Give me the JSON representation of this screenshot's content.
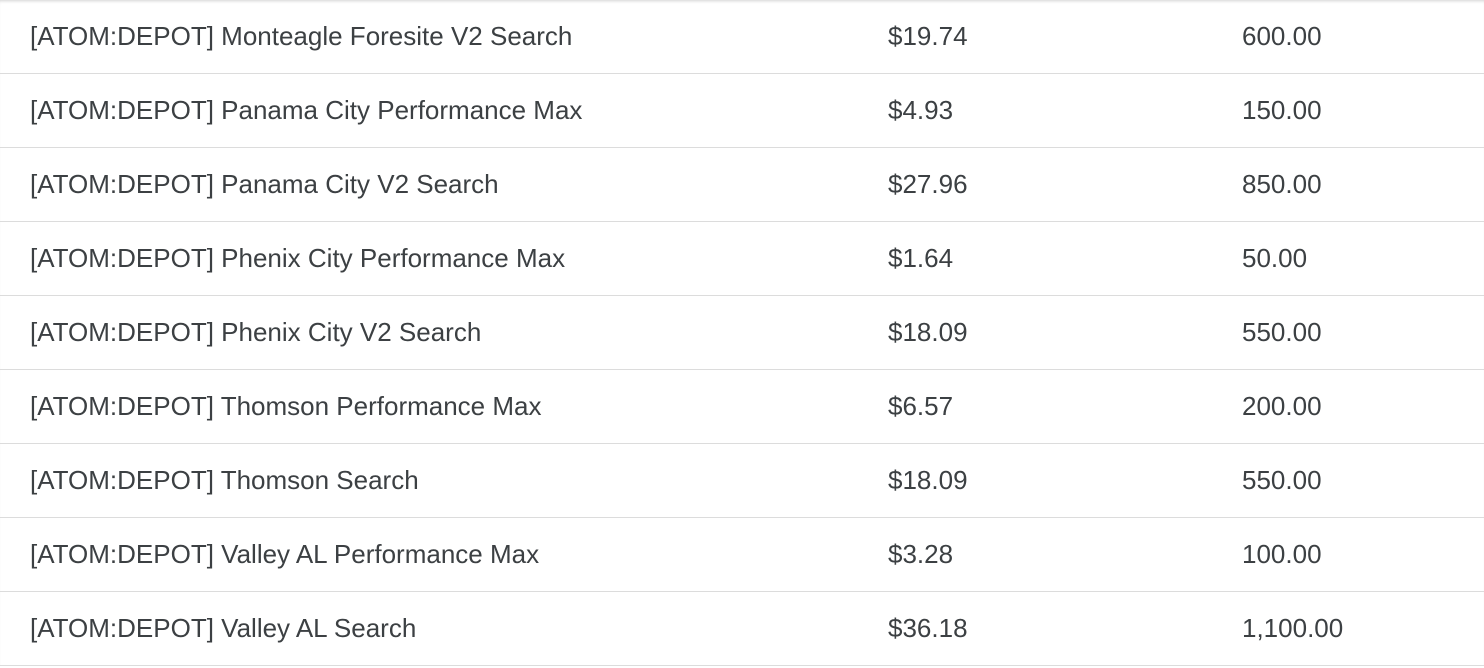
{
  "table": {
    "rows": [
      [
        "[ATOM:DEPOT] Monteagle Foresite V2 Search",
        "$19.74",
        "600.00"
      ],
      [
        "[ATOM:DEPOT] Panama City Performance Max",
        "$4.93",
        "150.00"
      ],
      [
        "[ATOM:DEPOT] Panama City V2 Search",
        "$27.96",
        "850.00"
      ],
      [
        "[ATOM:DEPOT] Phenix City Performance Max",
        "$1.64",
        "50.00"
      ],
      [
        "[ATOM:DEPOT] Phenix City V2 Search",
        "$18.09",
        "550.00"
      ],
      [
        "[ATOM:DEPOT] Thomson Performance Max",
        "$6.57",
        "200.00"
      ],
      [
        "[ATOM:DEPOT] Thomson Search",
        "$18.09",
        "550.00"
      ],
      [
        "[ATOM:DEPOT] Valley AL Performance Max",
        "$3.28",
        "100.00"
      ],
      [
        "[ATOM:DEPOT] Valley AL Search",
        "$36.18",
        "1,100.00"
      ]
    ]
  }
}
